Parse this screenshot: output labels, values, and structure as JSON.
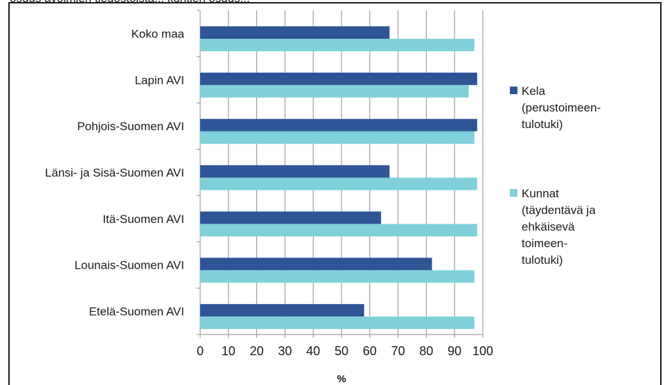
{
  "chart_data": {
    "type": "bar",
    "orientation": "horizontal",
    "categories": [
      "Koko maa",
      "Lapin AVI",
      "Pohjois-Suomen AVI",
      "Länsi- ja Sisä-Suomen AVI",
      "Itä-Suomen AVI",
      "Lounais-Suomen AVI",
      "Etelä-Suomen AVI"
    ],
    "series": [
      {
        "name": "Kela (perustoimeentulotuki)",
        "legend_lines": [
          "Kela",
          "(perustoimeen-",
          "tulotuki)"
        ],
        "color": "#2f5597",
        "values": [
          67,
          98,
          98,
          67,
          64,
          82,
          58
        ]
      },
      {
        "name": "Kunnat (täydentävä ja ehkäisevä toimeentulotuki)",
        "legend_lines": [
          "Kunnat",
          "(täydentävä ja",
          "ehkäisevä",
          "toimeen-",
          "tulotuki)"
        ],
        "color": "#7fd0d8",
        "values": [
          97,
          95,
          97,
          98,
          98,
          97,
          97
        ]
      }
    ],
    "xlabel": "%",
    "xlim": [
      0,
      100
    ],
    "xticks": [
      "0",
      "10",
      "20",
      "30",
      "40",
      "50",
      "60",
      "70",
      "80",
      "90",
      "100"
    ],
    "grid": "vertical",
    "legend_position": "right",
    "top_partial_text": "osuus avoimien tiedostoista... kuntien osuus..."
  }
}
